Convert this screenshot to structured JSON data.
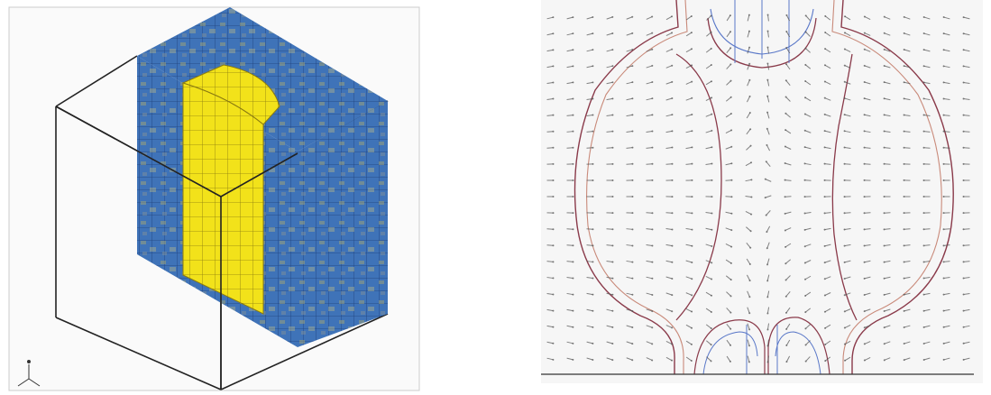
{
  "figures": {
    "left": {
      "kind": "3d-mesh-cutaway",
      "colors": {
        "outline": "#222222",
        "mesh_fill": "#3f73b8",
        "mesh_noise": "#9aa07a",
        "mesh_line": "#1f3f7a",
        "core_fill": "#f2e21a",
        "core_line": "#8a7a10",
        "frame_bg": "#fafafa"
      },
      "icons": [
        "axis-triad-icon"
      ]
    },
    "right": {
      "kind": "vector-field-with-contours",
      "colors": {
        "contour_primary": "#8a3a4a",
        "contour_secondary": "#c98a7a",
        "contour_blue": "#5a78c8",
        "arrow": "#505050",
        "background": "#f6f6f6"
      }
    }
  }
}
